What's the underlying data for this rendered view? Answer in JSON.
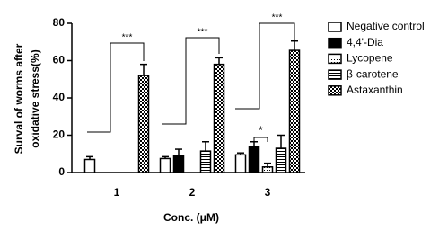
{
  "chart_data": {
    "type": "bar",
    "ylabel": [
      "Surval of worms after",
      "oxidative stress(%)"
    ],
    "xlabel": "Conc. (μM)",
    "categories": [
      "1",
      "2",
      "3"
    ],
    "ylim": [
      0,
      80
    ],
    "yticks": [
      0,
      20,
      40,
      60,
      80
    ],
    "series": [
      {
        "name": "Negative control",
        "fill": "white",
        "values": [
          7,
          7.5,
          9.5
        ],
        "errors": [
          1.5,
          1,
          1
        ]
      },
      {
        "name": "4,4'-Dia",
        "fill": "black",
        "values": [
          null,
          9,
          14
        ],
        "errors": [
          null,
          3.5,
          2.5
        ]
      },
      {
        "name": "Lycopene",
        "fill": "dots",
        "values": [
          null,
          null,
          3
        ],
        "errors": [
          null,
          null,
          2
        ]
      },
      {
        "name": "β-carotene",
        "fill": "hlines",
        "values": [
          null,
          11.5,
          13
        ],
        "errors": [
          null,
          5,
          7
        ]
      },
      {
        "name": "Astaxanthin",
        "fill": "checker",
        "values": [
          52,
          58,
          65.5
        ],
        "errors": [
          6,
          3.5,
          5
        ]
      }
    ],
    "annotations": [
      "***",
      "***",
      "***",
      "*"
    ]
  }
}
